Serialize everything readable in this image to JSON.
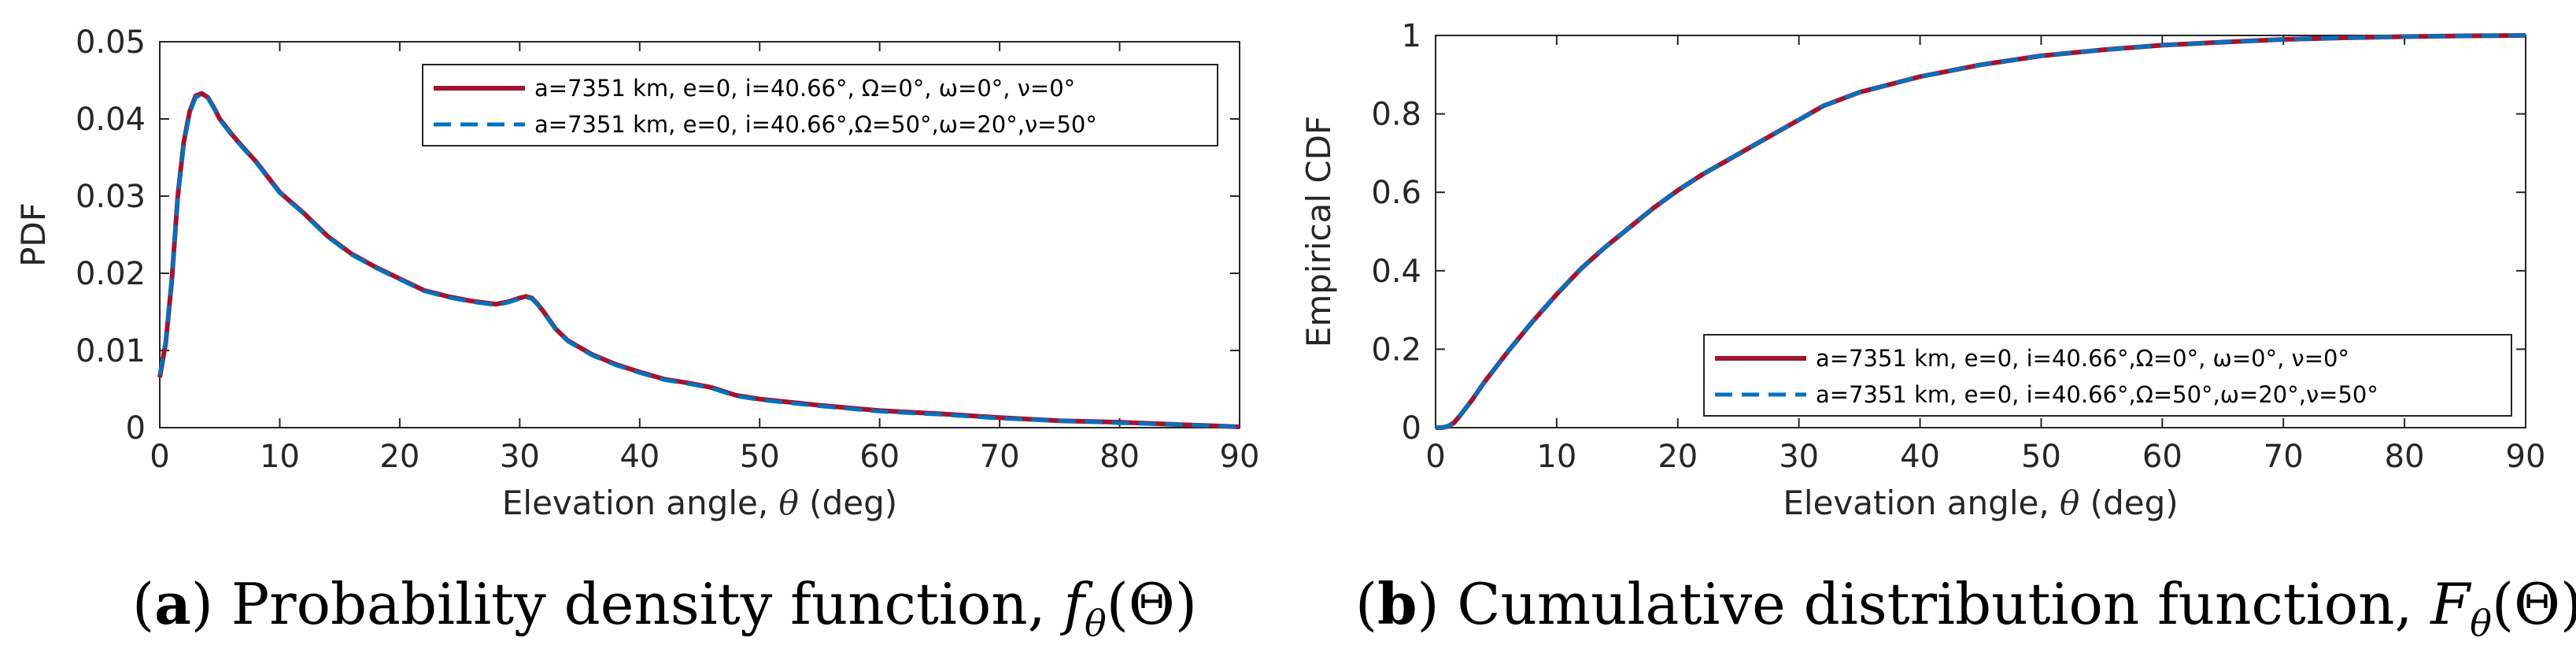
{
  "colors": {
    "red": "#a2142f",
    "blue": "#0072bd",
    "axis": "#262626"
  },
  "chart_data": [
    {
      "type": "line",
      "id": "pdf",
      "title": "",
      "xlabel_prefix": "Elevation angle, ",
      "xlabel_symbol": "θ",
      "xlabel_suffix": " (deg)",
      "ylabel": "PDF",
      "xlim": [
        0,
        90
      ],
      "ylim": [
        0,
        0.05
      ],
      "xticks": [
        0,
        10,
        20,
        30,
        40,
        50,
        60,
        70,
        80,
        90
      ],
      "xtick_labels": [
        "0",
        "10",
        "20",
        "30",
        "40",
        "50",
        "60",
        "70",
        "80",
        "90"
      ],
      "yticks": [
        0,
        0.01,
        0.02,
        0.03,
        0.04,
        0.05
      ],
      "ytick_labels": [
        "0",
        "0.01",
        "0.02",
        "0.03",
        "0.04",
        "0.05"
      ],
      "legend_position": "top-right",
      "series": [
        {
          "name": "a=7351 km, e=0, i=40.66°, Ω=0°, ω=0°, ν=0°",
          "color": "red",
          "style": "solid",
          "x": [
            0,
            0.5,
            1,
            1.5,
            2,
            2.5,
            3,
            3.5,
            4,
            4.5,
            5,
            6,
            7,
            8,
            9,
            10,
            12,
            14,
            16,
            18,
            20,
            22,
            24,
            26,
            28,
            29,
            30,
            30.5,
            31,
            31.5,
            32,
            33,
            34,
            36,
            38,
            40,
            42,
            44,
            46,
            48,
            50,
            55,
            60,
            65,
            70,
            75,
            80,
            85,
            90
          ],
          "y": [
            0.0065,
            0.011,
            0.019,
            0.03,
            0.037,
            0.041,
            0.043,
            0.0433,
            0.0428,
            0.0415,
            0.04,
            0.038,
            0.0362,
            0.0345,
            0.0325,
            0.0305,
            0.0278,
            0.0248,
            0.0225,
            0.0208,
            0.0193,
            0.0178,
            0.017,
            0.0164,
            0.016,
            0.0163,
            0.0168,
            0.017,
            0.0168,
            0.016,
            0.015,
            0.0128,
            0.0113,
            0.0095,
            0.0082,
            0.0072,
            0.0063,
            0.0058,
            0.0052,
            0.0042,
            0.0037,
            0.0029,
            0.0022,
            0.0018,
            0.0013,
            0.0009,
            0.0007,
            0.0004,
            0.0001
          ]
        },
        {
          "name": "a=7351 km, e=0, i=40.66°,Ω=50°,ω=20°,ν=50°",
          "color": "blue",
          "style": "dashed",
          "x": [
            0,
            0.5,
            1,
            1.5,
            2,
            2.5,
            3,
            3.5,
            4,
            4.5,
            5,
            6,
            7,
            8,
            9,
            10,
            12,
            14,
            16,
            18,
            20,
            22,
            24,
            26,
            28,
            29,
            30,
            30.5,
            31,
            31.5,
            32,
            33,
            34,
            36,
            38,
            40,
            42,
            44,
            46,
            48,
            50,
            55,
            60,
            65,
            70,
            75,
            80,
            85,
            90
          ],
          "y": [
            0.0068,
            0.0112,
            0.0192,
            0.0298,
            0.0368,
            0.0408,
            0.0428,
            0.0432,
            0.0427,
            0.0414,
            0.0399,
            0.0379,
            0.0361,
            0.0344,
            0.0324,
            0.0304,
            0.0277,
            0.0247,
            0.0224,
            0.0207,
            0.0192,
            0.0177,
            0.0169,
            0.0163,
            0.0159,
            0.0162,
            0.0167,
            0.0169,
            0.0167,
            0.0159,
            0.0149,
            0.0127,
            0.0112,
            0.0094,
            0.0081,
            0.0071,
            0.0062,
            0.0057,
            0.0051,
            0.0041,
            0.0036,
            0.0028,
            0.0021,
            0.0017,
            0.0012,
            0.0009,
            0.0006,
            0.0004,
            0.0001
          ]
        }
      ]
    },
    {
      "type": "line",
      "id": "cdf",
      "title": "",
      "xlabel_prefix": "Elevation angle, ",
      "xlabel_symbol": "θ",
      "xlabel_suffix": " (deg)",
      "ylabel": "Empirical CDF",
      "xlim": [
        0,
        90
      ],
      "ylim": [
        0,
        1
      ],
      "xticks": [
        0,
        10,
        20,
        30,
        40,
        50,
        60,
        70,
        80,
        90
      ],
      "xtick_labels": [
        "0",
        "10",
        "20",
        "30",
        "40",
        "50",
        "60",
        "70",
        "80",
        "90"
      ],
      "yticks": [
        0,
        0.2,
        0.4,
        0.6,
        0.8,
        1
      ],
      "ytick_labels": [
        "0",
        "0.2",
        "0.4",
        "0.6",
        "0.8",
        "1"
      ],
      "legend_position": "bottom-right",
      "series": [
        {
          "name": "a=7351 km, e=0, i=40.66°,Ω=0°, ω=0°, ν=0°",
          "color": "red",
          "style": "solid",
          "x": [
            0,
            0.5,
            1,
            1.5,
            2,
            3,
            4,
            5,
            6,
            8,
            10,
            12,
            14,
            16,
            18,
            20,
            22,
            24,
            26,
            28,
            30,
            32,
            35,
            40,
            45,
            50,
            55,
            60,
            65,
            70,
            75,
            80,
            85,
            90
          ],
          "y": [
            0,
            0,
            0.003,
            0.012,
            0.03,
            0.07,
            0.115,
            0.155,
            0.195,
            0.27,
            0.34,
            0.405,
            0.46,
            0.51,
            0.56,
            0.605,
            0.645,
            0.68,
            0.715,
            0.75,
            0.785,
            0.82,
            0.855,
            0.895,
            0.925,
            0.948,
            0.963,
            0.975,
            0.983,
            0.99,
            0.994,
            0.997,
            0.999,
            1.0
          ]
        },
        {
          "name": "a=7351 km, e=0, i=40.66°,Ω=50°,ω=20°,ν=50°",
          "color": "blue",
          "style": "dashed",
          "x": [
            0,
            0.5,
            1,
            1.5,
            2,
            3,
            4,
            5,
            6,
            8,
            10,
            12,
            14,
            16,
            18,
            20,
            22,
            24,
            26,
            28,
            30,
            32,
            35,
            40,
            45,
            50,
            55,
            60,
            65,
            70,
            75,
            80,
            85,
            90
          ],
          "y": [
            0,
            0,
            0.003,
            0.012,
            0.03,
            0.07,
            0.115,
            0.155,
            0.195,
            0.27,
            0.34,
            0.405,
            0.46,
            0.51,
            0.56,
            0.605,
            0.645,
            0.68,
            0.715,
            0.75,
            0.785,
            0.82,
            0.855,
            0.895,
            0.925,
            0.948,
            0.963,
            0.975,
            0.983,
            0.99,
            0.994,
            0.997,
            0.999,
            1.0
          ]
        }
      ]
    }
  ],
  "captions": [
    {
      "label": "a",
      "text": " Probability density function, ",
      "func": "f",
      "sub": "θ",
      "arg": "(Θ)"
    },
    {
      "label": "b",
      "text": " Cumulative distribution function, ",
      "func": "F",
      "sub": "θ",
      "arg": "(Θ)"
    }
  ]
}
